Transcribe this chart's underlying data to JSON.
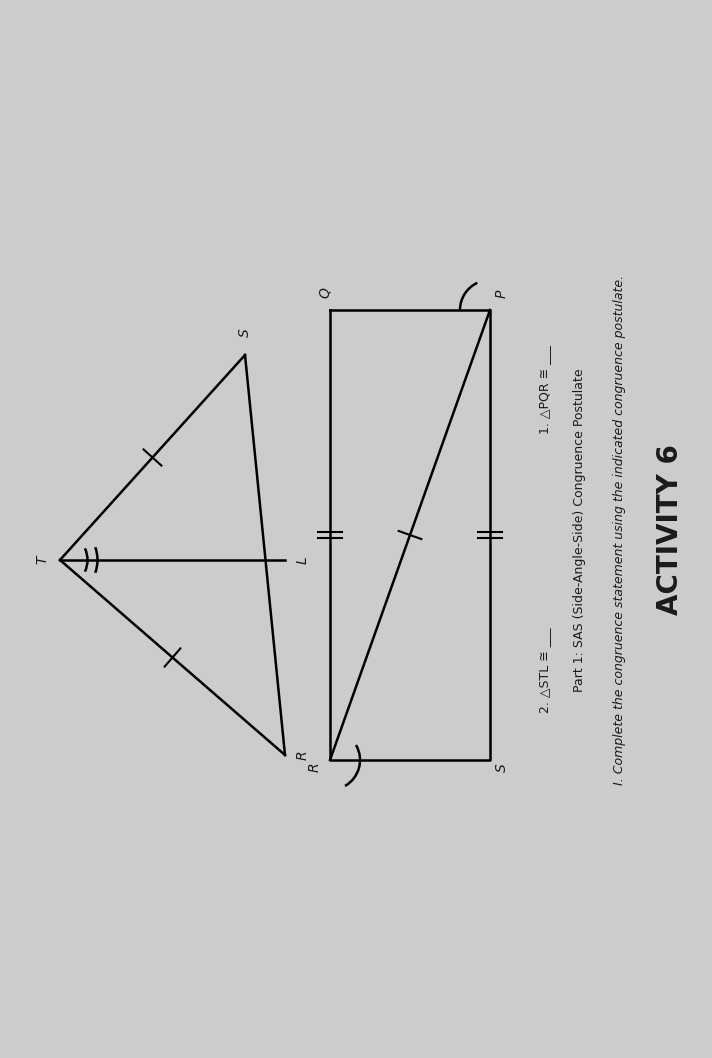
{
  "title": "ACTIVITY 6",
  "instruction": "I. Complete the congruence statement using the indicated congruence postulate.",
  "part1_label": "Part 1: SAS (Side-Angle-Side) Congruence Postulate",
  "item1_label": "1. △PQR ≅ ___",
  "item2_label": "2. △STL ≅ ___",
  "bg_color": "#cccccc",
  "text_color": "#1a1a1a",
  "fig_width": 7.12,
  "fig_height": 10.58
}
